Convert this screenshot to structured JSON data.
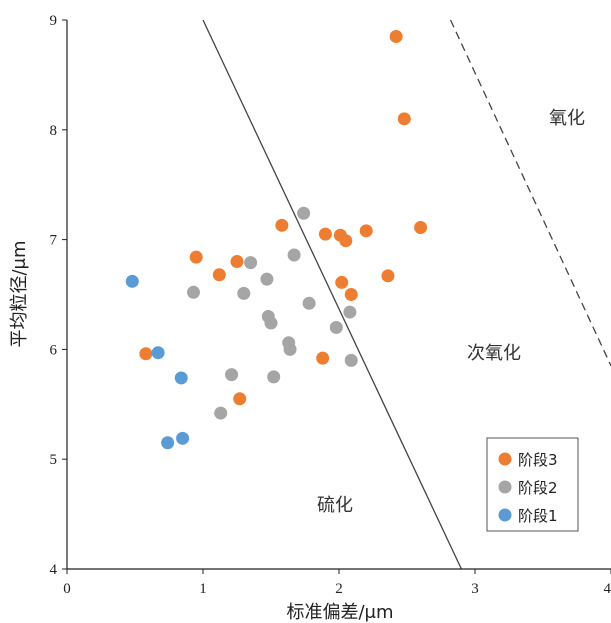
{
  "chart_data": {
    "type": "scatter",
    "xlabel": "标准偏差/μm",
    "ylabel": "平均粒径/μm",
    "xlim": [
      0,
      4
    ],
    "ylim": [
      4,
      9
    ],
    "x_ticks": [
      "0",
      "1",
      "2",
      "3",
      "4"
    ],
    "y_ticks": [
      "4",
      "5",
      "6",
      "7",
      "8",
      "9"
    ],
    "grid": false,
    "legend_position": "bottom-right",
    "region_labels": {
      "oxidation": "氧化",
      "suboxidation": "次氧化",
      "sulfidation": "硫化"
    },
    "boundary_lines": [
      {
        "style": "solid",
        "from": [
          1.0,
          9.0
        ],
        "to": [
          2.9,
          4.0
        ]
      },
      {
        "style": "dashed",
        "from": [
          2.82,
          9.0
        ],
        "to": [
          4.0,
          5.85
        ]
      }
    ],
    "series": [
      {
        "name": "阶段3",
        "color": "#ED7D31",
        "points": [
          {
            "x": 2.42,
            "y": 8.85
          },
          {
            "x": 2.48,
            "y": 8.1
          },
          {
            "x": 1.58,
            "y": 7.13
          },
          {
            "x": 1.9,
            "y": 7.05
          },
          {
            "x": 2.01,
            "y": 7.04
          },
          {
            "x": 2.05,
            "y": 6.99
          },
          {
            "x": 2.2,
            "y": 7.08
          },
          {
            "x": 2.6,
            "y": 7.11
          },
          {
            "x": 0.95,
            "y": 6.84
          },
          {
            "x": 1.25,
            "y": 6.8
          },
          {
            "x": 1.12,
            "y": 6.68
          },
          {
            "x": 2.36,
            "y": 6.67
          },
          {
            "x": 2.02,
            "y": 6.61
          },
          {
            "x": 2.09,
            "y": 6.5
          },
          {
            "x": 0.58,
            "y": 5.96
          },
          {
            "x": 1.88,
            "y": 5.92
          },
          {
            "x": 1.27,
            "y": 5.55
          }
        ]
      },
      {
        "name": "阶段2",
        "color": "#A5A5A5",
        "points": [
          {
            "x": 1.74,
            "y": 7.24
          },
          {
            "x": 1.67,
            "y": 6.86
          },
          {
            "x": 1.35,
            "y": 6.79
          },
          {
            "x": 1.47,
            "y": 6.64
          },
          {
            "x": 0.93,
            "y": 6.52
          },
          {
            "x": 1.3,
            "y": 6.51
          },
          {
            "x": 1.78,
            "y": 6.42
          },
          {
            "x": 2.08,
            "y": 6.34
          },
          {
            "x": 1.48,
            "y": 6.3
          },
          {
            "x": 1.5,
            "y": 6.24
          },
          {
            "x": 1.98,
            "y": 6.2
          },
          {
            "x": 1.63,
            "y": 6.06
          },
          {
            "x": 1.64,
            "y": 6.0
          },
          {
            "x": 2.09,
            "y": 5.9
          },
          {
            "x": 1.21,
            "y": 5.77
          },
          {
            "x": 1.52,
            "y": 5.75
          },
          {
            "x": 1.13,
            "y": 5.42
          }
        ]
      },
      {
        "name": "阶段1",
        "color": "#5B9BD5",
        "points": [
          {
            "x": 0.48,
            "y": 6.62
          },
          {
            "x": 0.67,
            "y": 5.97
          },
          {
            "x": 0.84,
            "y": 5.74
          },
          {
            "x": 0.85,
            "y": 5.19
          },
          {
            "x": 0.74,
            "y": 5.15
          }
        ]
      }
    ]
  }
}
